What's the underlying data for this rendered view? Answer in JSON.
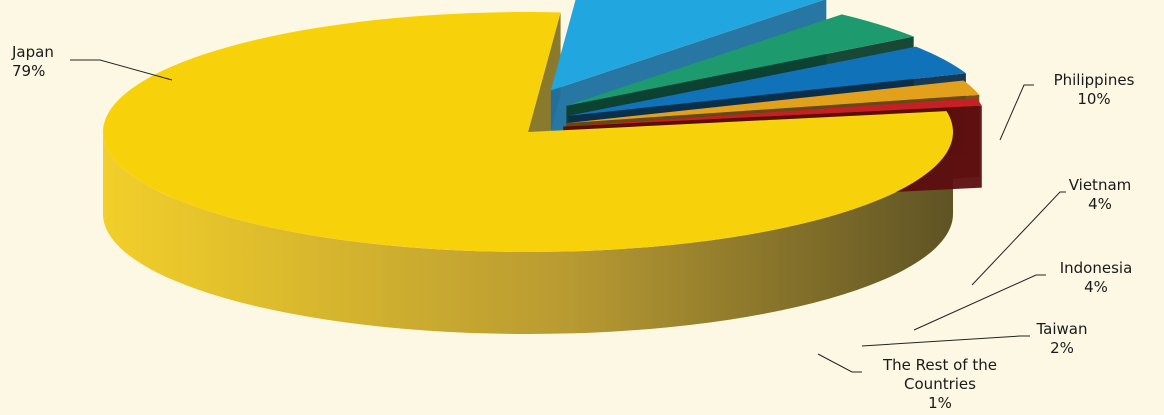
{
  "chart_data": {
    "type": "pie",
    "style": "3d-exploded",
    "slices": [
      {
        "label": "Japan",
        "value": 79,
        "value_label": "79%",
        "color": "#f7d20a"
      },
      {
        "label": "Philippines",
        "value": 10,
        "value_label": "10%",
        "color": "#22a6e0"
      },
      {
        "label": "Vietnam",
        "value": 4,
        "value_label": "4%",
        "color": "#1e9a6f"
      },
      {
        "label": "Indonesia",
        "value": 4,
        "value_label": "4%",
        "color": "#1072b8"
      },
      {
        "label": "Taiwan",
        "value": 2,
        "value_label": "2%",
        "color": "#e3a01a"
      },
      {
        "label": "The Rest of the Countries",
        "value": 1,
        "value_label": "1%",
        "color": "#c62024"
      }
    ],
    "legend": "none",
    "data_labels": "outside-with-leader-lines"
  }
}
